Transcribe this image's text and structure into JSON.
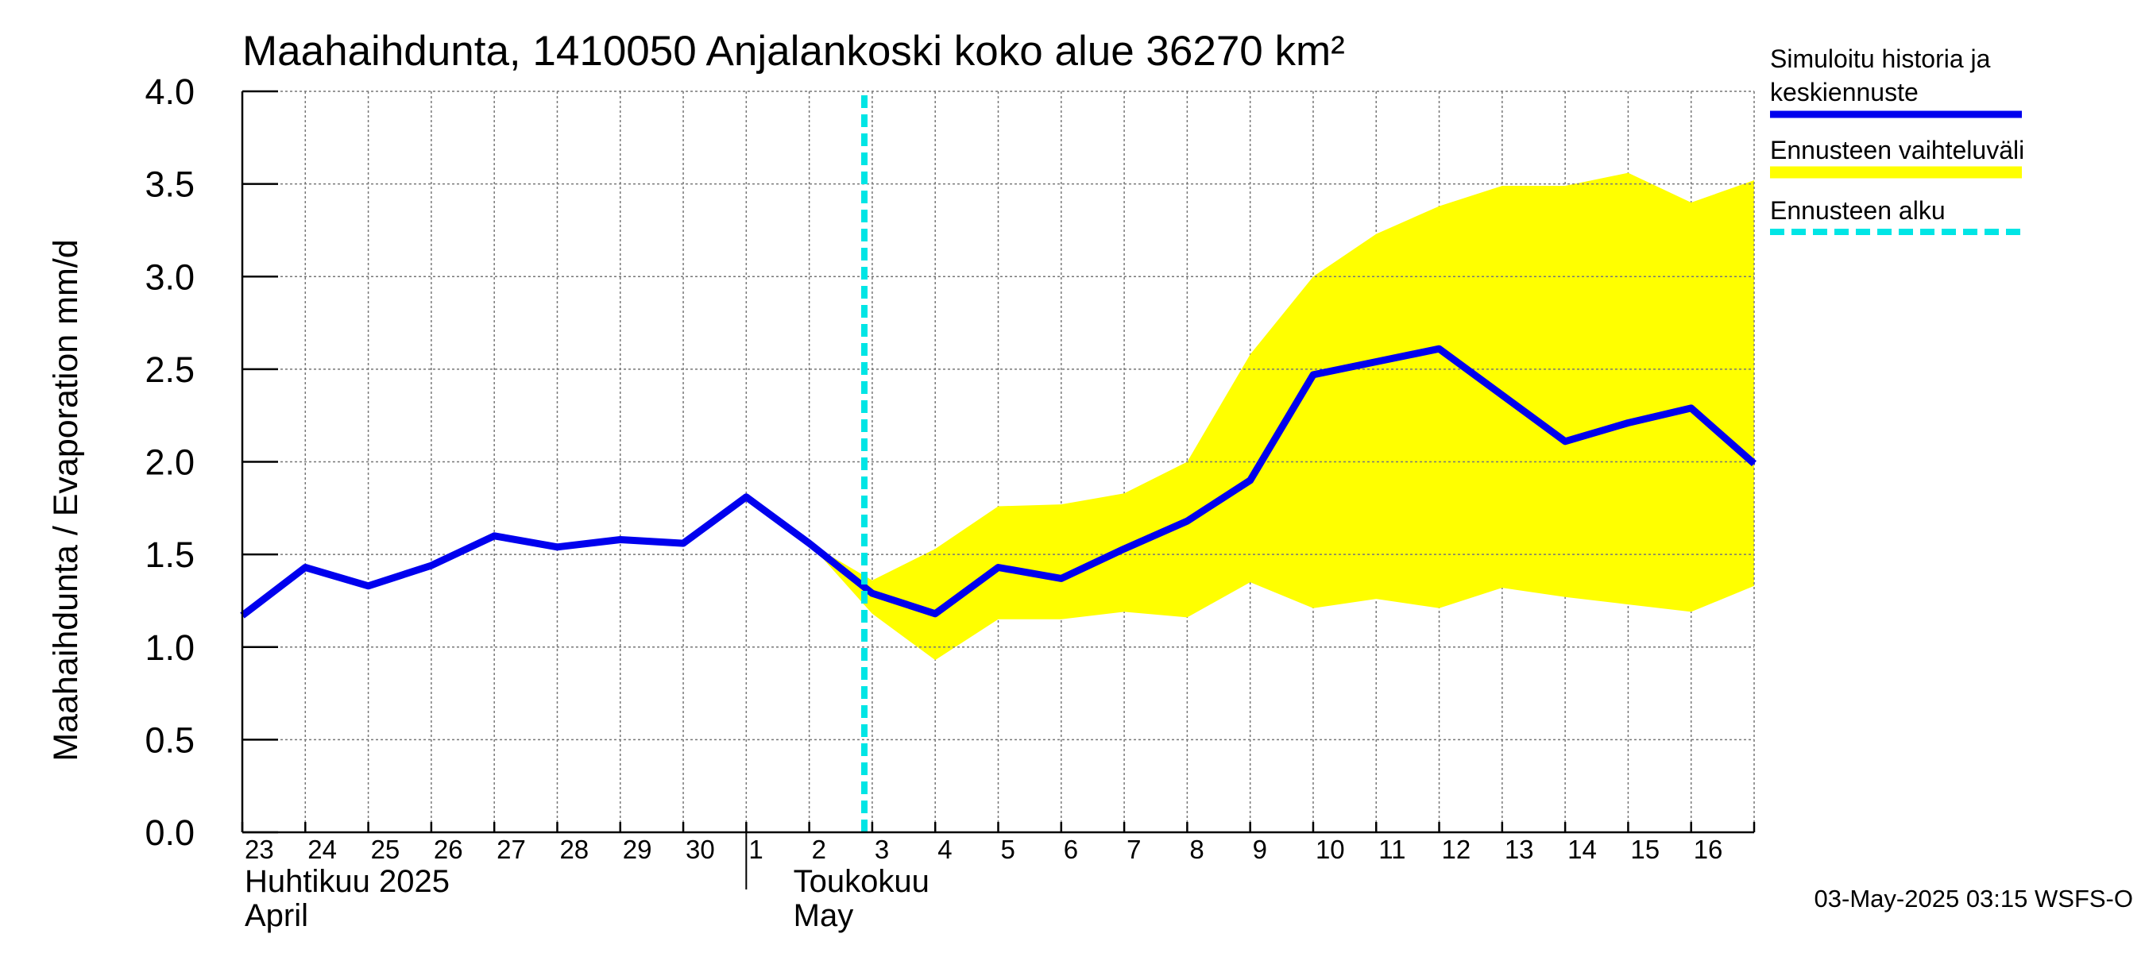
{
  "chart_data": {
    "type": "line",
    "title": "Maahaihdunta, 1410050 Anjalankoski koko alue 36270 km²",
    "ylabel": "Maahaihdunta / Evaporation   mm/d",
    "ylim": [
      0,
      4
    ],
    "yticks": [
      "0.0",
      "0.5",
      "1.0",
      "1.5",
      "2.0",
      "2.5",
      "3.0",
      "3.5",
      "4.0"
    ],
    "x": [
      "2025-04-23",
      "2025-04-24",
      "2025-04-25",
      "2025-04-26",
      "2025-04-27",
      "2025-04-28",
      "2025-04-29",
      "2025-04-30",
      "2025-05-01",
      "2025-05-02",
      "2025-05-03",
      "2025-05-04",
      "2025-05-05",
      "2025-05-06",
      "2025-05-07",
      "2025-05-08",
      "2025-05-09",
      "2025-05-10",
      "2025-05-11",
      "2025-05-12",
      "2025-05-13",
      "2025-05-14",
      "2025-05-15",
      "2025-05-16",
      "2025-05-17"
    ],
    "xtick_labels": [
      "23",
      "24",
      "25",
      "26",
      "27",
      "28",
      "29",
      "30",
      "1",
      "2",
      "3",
      "4",
      "5",
      "6",
      "7",
      "8",
      "9",
      "10",
      "11",
      "12",
      "13",
      "14",
      "15",
      "16"
    ],
    "month_labels": [
      {
        "line1": "Huhtikuu  2025",
        "line2": "April"
      },
      {
        "line1": "Toukokuu",
        "line2": "May"
      }
    ],
    "grid": true,
    "series": [
      {
        "name": "Simuloitu historia ja keskiennuste",
        "color": "#0000ee",
        "values": [
          1.17,
          1.43,
          1.33,
          1.44,
          1.6,
          1.54,
          1.58,
          1.56,
          1.81,
          1.56,
          1.29,
          1.18,
          1.43,
          1.37,
          1.53,
          1.68,
          1.9,
          2.47,
          2.54,
          2.61,
          2.36,
          2.11,
          2.21,
          2.29,
          1.99
        ]
      }
    ],
    "band": {
      "name": "Ennusteen vaihteluväli",
      "color": "#ffff00",
      "start_index": 9,
      "upper": [
        1.56,
        1.36,
        1.53,
        1.76,
        1.77,
        1.83,
        2.0,
        2.58,
        3.0,
        3.23,
        3.38,
        3.49,
        3.49,
        3.56,
        3.4,
        3.52
      ],
      "lower": [
        1.56,
        1.18,
        0.93,
        1.15,
        1.15,
        1.19,
        1.16,
        1.35,
        1.21,
        1.26,
        1.21,
        1.32,
        1.27,
        1.23,
        1.19,
        1.33
      ]
    },
    "forecast_start": {
      "name": "Ennusteen alku",
      "color": "#00e5e5",
      "x": "2025-05-02T21:00"
    },
    "legend": {
      "placement": "right",
      "items": [
        {
          "line1": "Simuloitu historia ja",
          "line2": "keskiennuste",
          "color": "#0000ee",
          "style": "solid"
        },
        {
          "line1": "Ennusteen vaihteluväli",
          "line2": "",
          "color": "#ffff00",
          "style": "band"
        },
        {
          "line1": "Ennusteen alku",
          "line2": "",
          "color": "#00e5e5",
          "style": "dashed"
        }
      ]
    },
    "footer": "03-May-2025 03:15 WSFS-O"
  }
}
